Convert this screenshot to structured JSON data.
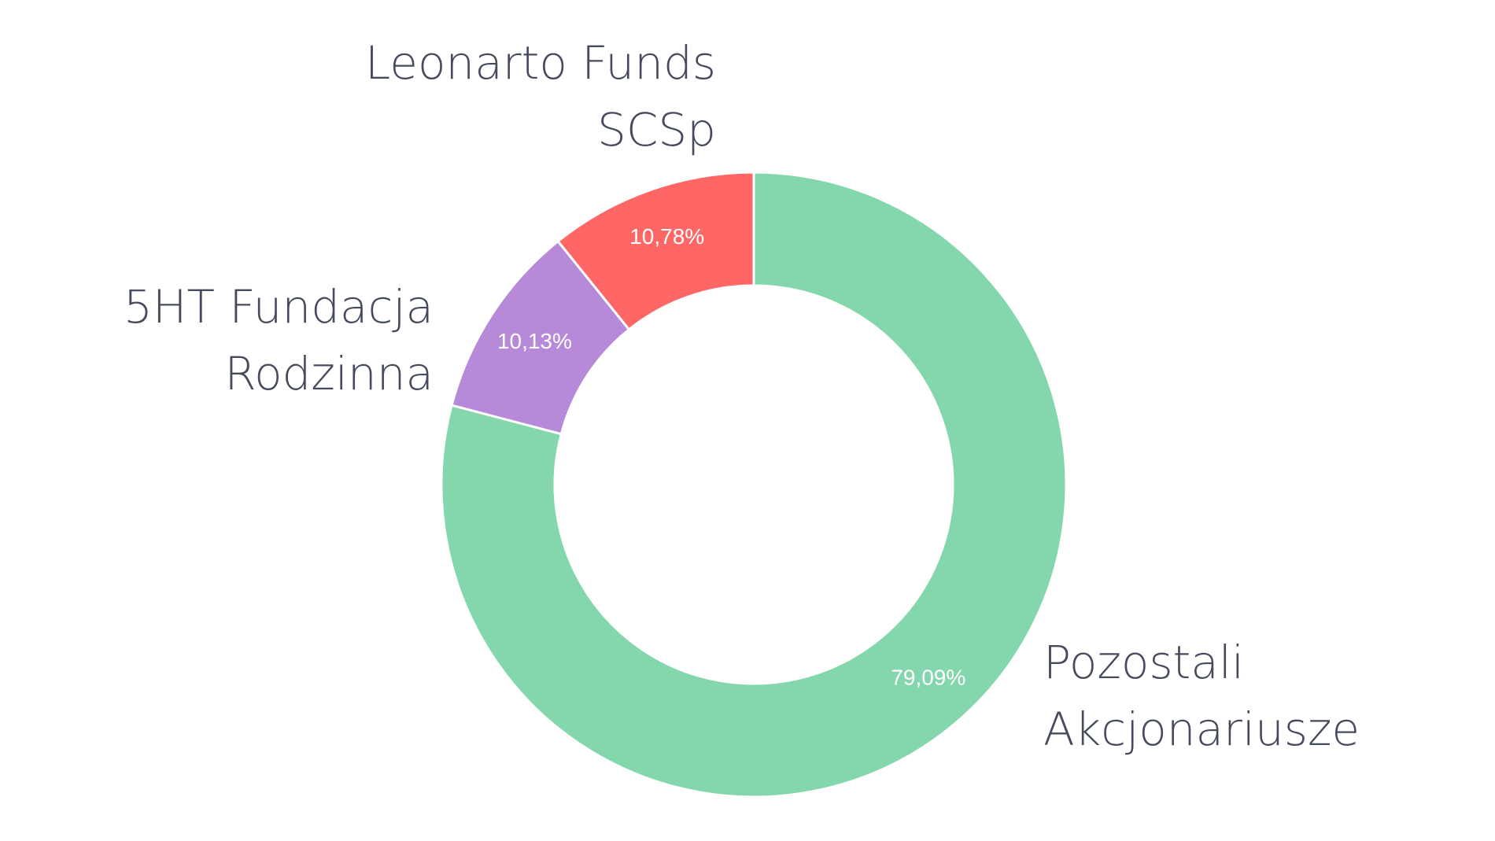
{
  "chart_data": {
    "type": "pie",
    "donut": true,
    "title": "",
    "slices": [
      {
        "name": "Pozostali Akcjonariusze",
        "label_lines": [
          "Pozostali",
          "Akcjonariusze"
        ],
        "value": 79.09,
        "value_label": "79,09%",
        "color": "#84d7ac"
      },
      {
        "name": "5HT Fundacja Rodzinna",
        "label_lines": [
          "5HT Fundacja",
          "Rodzinna"
        ],
        "value": 10.13,
        "value_label": "10,13%",
        "color": "#b78ad9"
      },
      {
        "name": "Leonarto Funds SCSp",
        "label_lines": [
          "Leonarto Funds",
          "SCSp"
        ],
        "value": 10.78,
        "value_label": "10,78%",
        "color": "#ff6666"
      }
    ],
    "legend": "none"
  }
}
